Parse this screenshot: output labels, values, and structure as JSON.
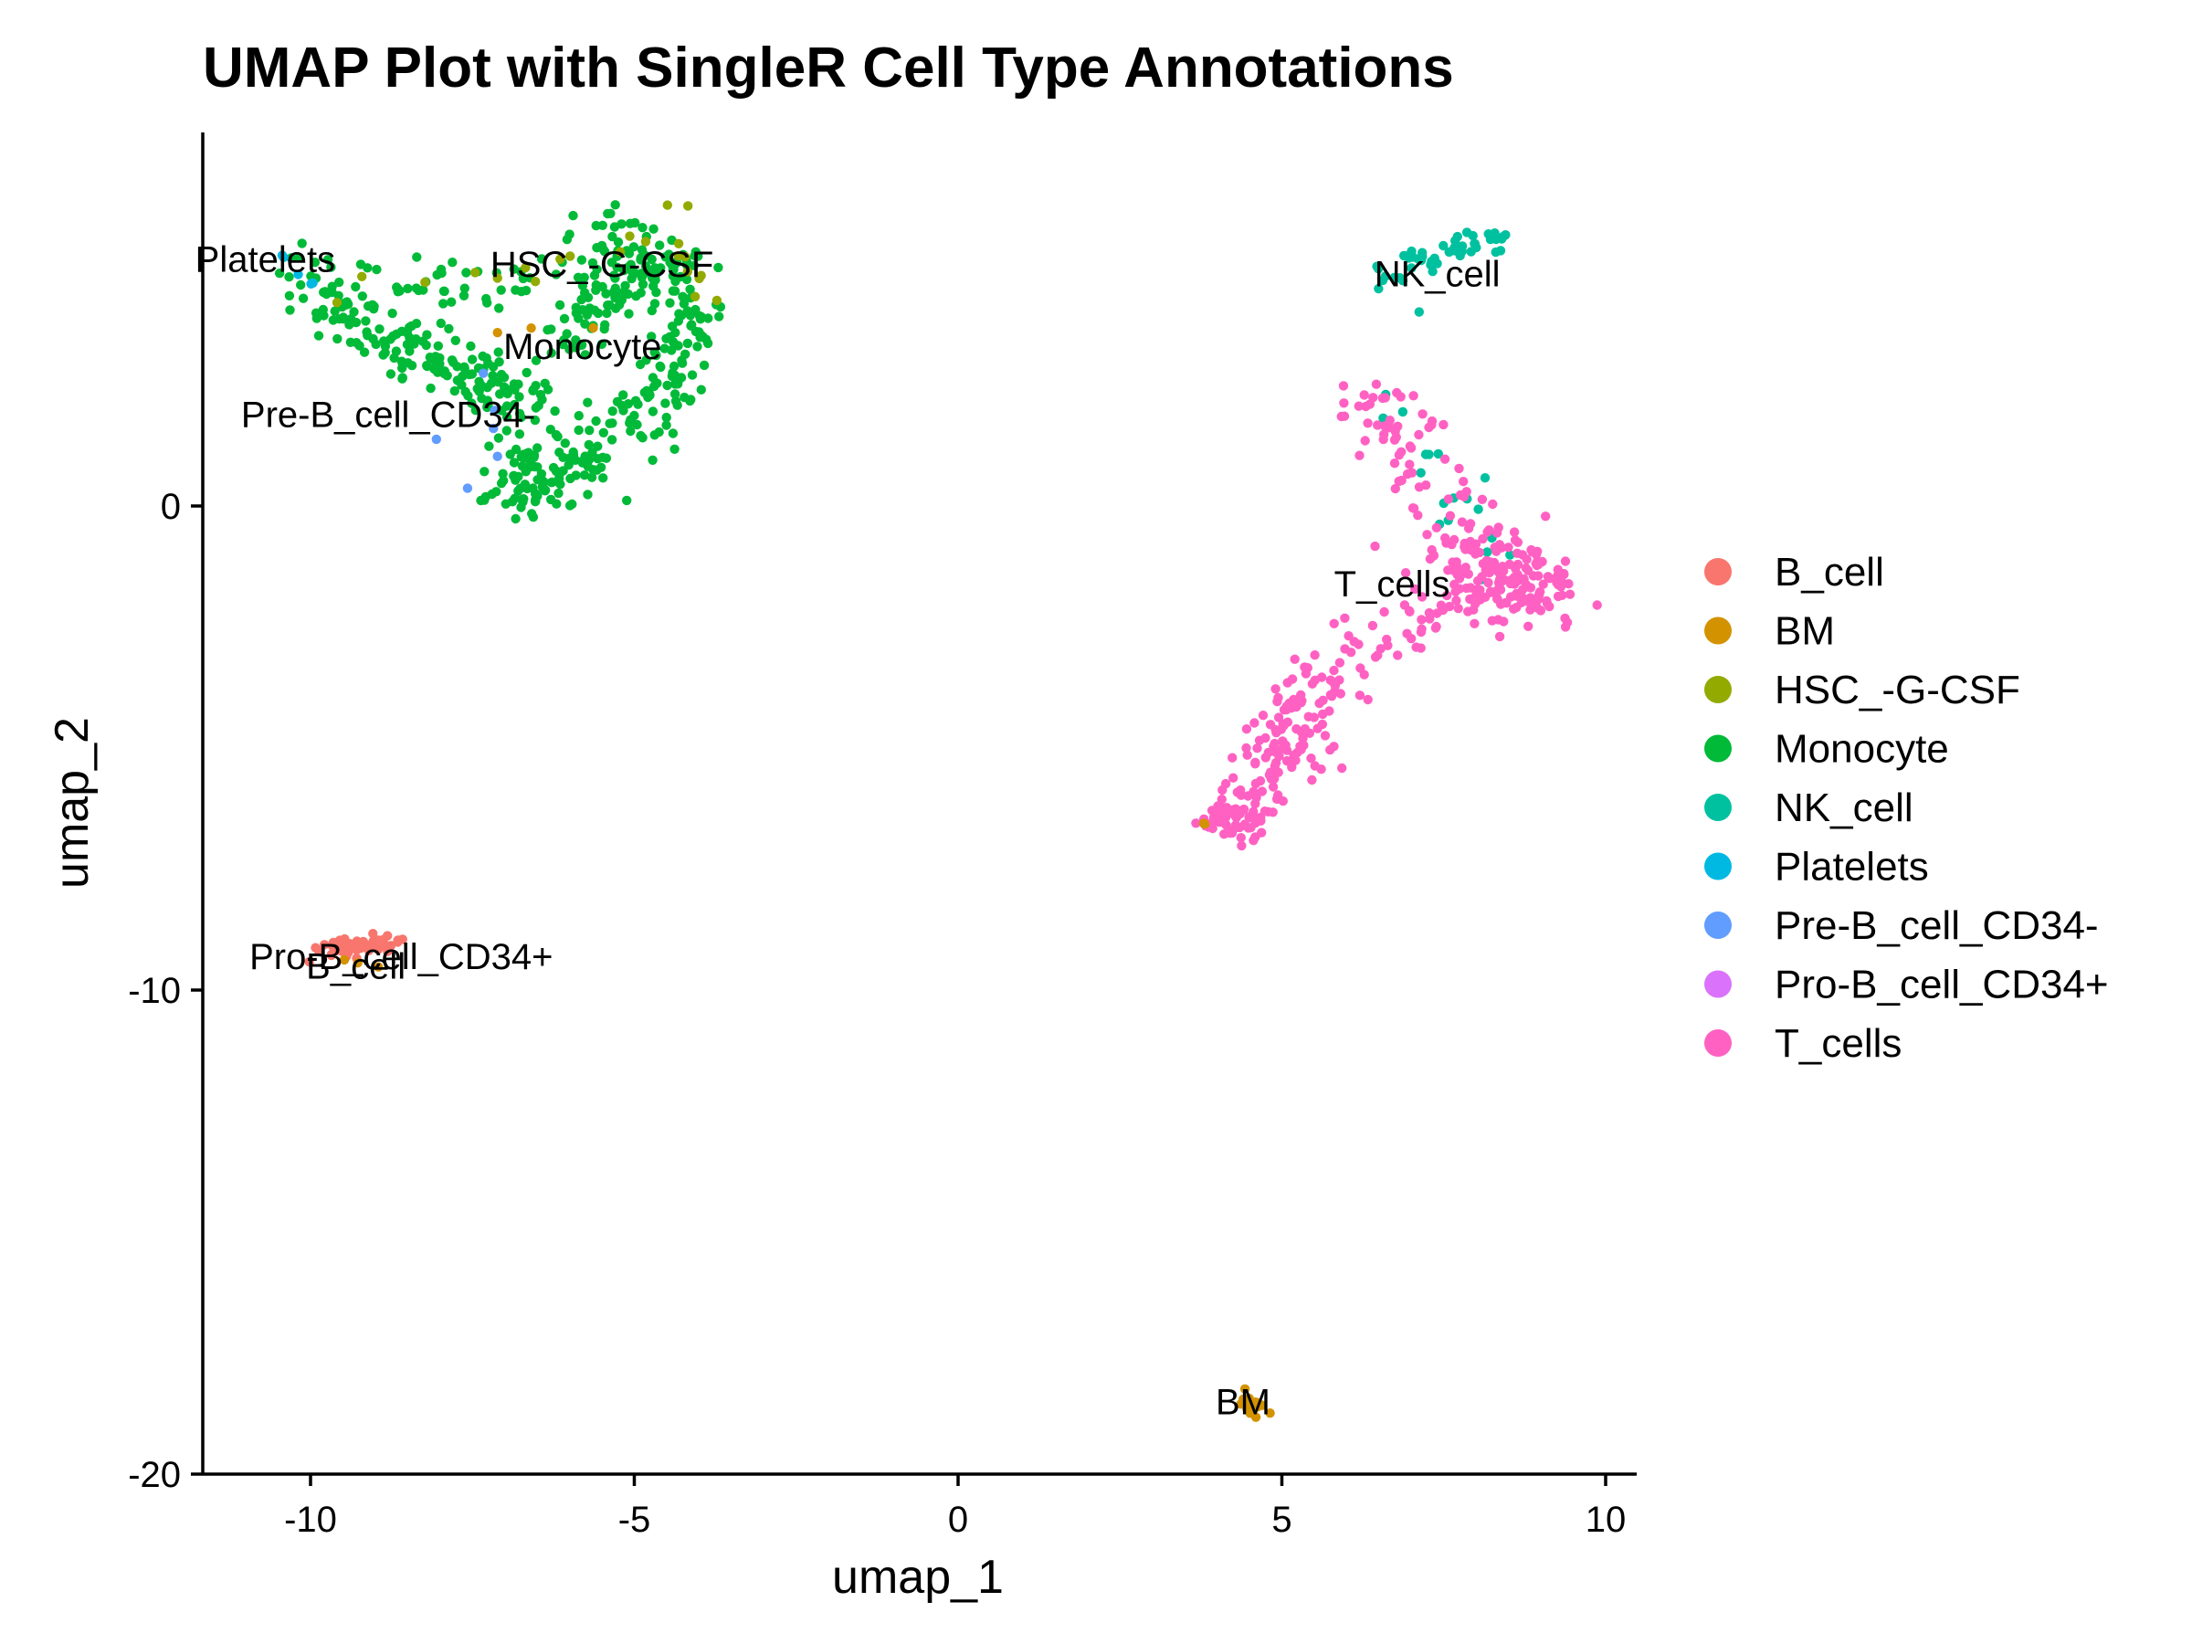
{
  "chart_data": {
    "type": "scatter",
    "title": "UMAP Plot with SingleR Cell Type Annotations",
    "xlabel": "umap_1",
    "ylabel": "umap_2",
    "xlim": [
      -11.8,
      10.4
    ],
    "ylim": [
      -20,
      7.7
    ],
    "xticks": [
      -10,
      -5,
      0,
      5,
      10
    ],
    "yticks": [
      -20,
      -10,
      0
    ],
    "grid": false,
    "legend_position": "right",
    "series": [
      {
        "name": "B_cell",
        "color": "#F8766D"
      },
      {
        "name": "BM",
        "color": "#D39200"
      },
      {
        "name": "HSC_-G-CSF",
        "color": "#93AA00"
      },
      {
        "name": "Monocyte",
        "color": "#00BA38"
      },
      {
        "name": "NK_cell",
        "color": "#00C19F"
      },
      {
        "name": "Platelets",
        "color": "#00B9E3"
      },
      {
        "name": "Pre-B_cell_CD34-",
        "color": "#619CFF"
      },
      {
        "name": "Pro-B_cell_CD34+",
        "color": "#DB72FB"
      },
      {
        "name": "T_cells",
        "color": "#FF61C3"
      }
    ],
    "cluster_labels": [
      {
        "text": "Platelets",
        "x": -10.7,
        "y": 5.1
      },
      {
        "text": "HSC_-G-CSF",
        "x": -5.5,
        "y": 5.0
      },
      {
        "text": "Monocyte",
        "x": -5.8,
        "y": 3.3
      },
      {
        "text": "Pre-B_cell_CD34-",
        "x": -8.8,
        "y": 1.9
      },
      {
        "text": "NK_cell",
        "x": 7.4,
        "y": 4.8
      },
      {
        "text": "T_cells",
        "x": 6.7,
        "y": -1.6
      },
      {
        "text": "Pro-B_cell_CD34+",
        "x": -8.6,
        "y": -9.3
      },
      {
        "text": "B_cell",
        "x": -9.3,
        "y": -9.5
      },
      {
        "text": "BM",
        "x": 4.4,
        "y": -18.5
      }
    ]
  }
}
